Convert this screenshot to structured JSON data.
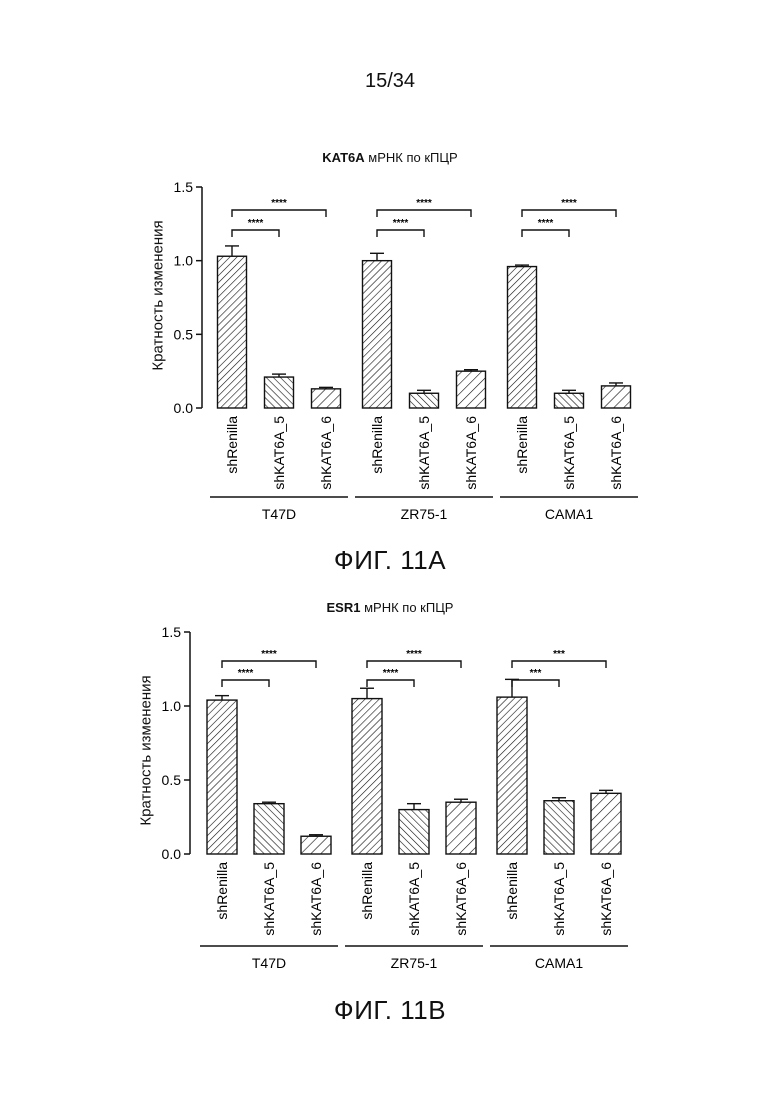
{
  "page_number": "15/34",
  "figures": [
    {
      "id": "A",
      "title_gene": "KAT6A",
      "title_rest": "мРНК по кПЦР",
      "caption": "ФИГ. 11А"
    },
    {
      "id": "B",
      "title_gene": "ESR1",
      "title_rest": "мРНК по кПЦР",
      "caption": "ФИГ. 11В"
    }
  ],
  "chart_data": [
    {
      "type": "bar",
      "title": "KAT6A мРНК по кПЦР",
      "ylabel": "Кратность изменения",
      "xlabel": "",
      "ylim": [
        0,
        1.5
      ],
      "yticks": [
        0.0,
        0.5,
        1.0,
        1.5
      ],
      "ytick_labels": [
        "0.0",
        "0.5",
        "1.0",
        "1.5"
      ],
      "groups": [
        "T47D",
        "ZR75-1",
        "CAMA1"
      ],
      "categories": [
        "shRenilla",
        "shKAT6A_5",
        "shKAT6A_6"
      ],
      "series": [
        {
          "group": "T47D",
          "values": [
            1.03,
            0.21,
            0.13
          ],
          "errors": [
            0.07,
            0.02,
            0.01
          ]
        },
        {
          "group": "ZR75-1",
          "values": [
            1.0,
            0.1,
            0.25
          ],
          "errors": [
            0.05,
            0.02,
            0.01
          ]
        },
        {
          "group": "CAMA1",
          "values": [
            0.96,
            0.1,
            0.15
          ],
          "errors": [
            0.01,
            0.02,
            0.02
          ]
        }
      ],
      "significance": [
        {
          "group": "T47D",
          "from": "shRenilla",
          "to": "shKAT6A_5",
          "label": "****"
        },
        {
          "group": "T47D",
          "from": "shRenilla",
          "to": "shKAT6A_6",
          "label": "****"
        },
        {
          "group": "ZR75-1",
          "from": "shRenilla",
          "to": "shKAT6A_5",
          "label": "****"
        },
        {
          "group": "ZR75-1",
          "from": "shRenilla",
          "to": "shKAT6A_6",
          "label": "****"
        },
        {
          "group": "CAMA1",
          "from": "shRenilla",
          "to": "shKAT6A_5",
          "label": "****"
        },
        {
          "group": "CAMA1",
          "from": "shRenilla",
          "to": "shKAT6A_6",
          "label": "****"
        }
      ],
      "grid": false,
      "legend": "none"
    },
    {
      "type": "bar",
      "title": "ESR1 мРНК по кПЦР",
      "ylabel": "Кратность изменения",
      "xlabel": "",
      "ylim": [
        0,
        1.5
      ],
      "yticks": [
        0.0,
        0.5,
        1.0,
        1.5
      ],
      "ytick_labels": [
        "0.0",
        "0.5",
        "1.0",
        "1.5"
      ],
      "groups": [
        "T47D",
        "ZR75-1",
        "CAMA1"
      ],
      "categories": [
        "shRenilla",
        "shKAT6A_5",
        "shKAT6A_6"
      ],
      "series": [
        {
          "group": "T47D",
          "values": [
            1.04,
            0.34,
            0.12
          ],
          "errors": [
            0.03,
            0.01,
            0.01
          ]
        },
        {
          "group": "ZR75-1",
          "values": [
            1.05,
            0.3,
            0.35
          ],
          "errors": [
            0.07,
            0.04,
            0.02
          ]
        },
        {
          "group": "CAMA1",
          "values": [
            1.06,
            0.36,
            0.41
          ],
          "errors": [
            0.12,
            0.02,
            0.02
          ]
        }
      ],
      "significance": [
        {
          "group": "T47D",
          "from": "shRenilla",
          "to": "shKAT6A_5",
          "label": "****"
        },
        {
          "group": "T47D",
          "from": "shRenilla",
          "to": "shKAT6A_6",
          "label": "****"
        },
        {
          "group": "ZR75-1",
          "from": "shRenilla",
          "to": "shKAT6A_5",
          "label": "****"
        },
        {
          "group": "ZR75-1",
          "from": "shRenilla",
          "to": "shKAT6A_6",
          "label": "****"
        },
        {
          "group": "CAMA1",
          "from": "shRenilla",
          "to": "shKAT6A_5",
          "label": "***"
        },
        {
          "group": "CAMA1",
          "from": "shRenilla",
          "to": "shKAT6A_6",
          "label": "***"
        }
      ],
      "grid": false,
      "legend": "none"
    }
  ]
}
